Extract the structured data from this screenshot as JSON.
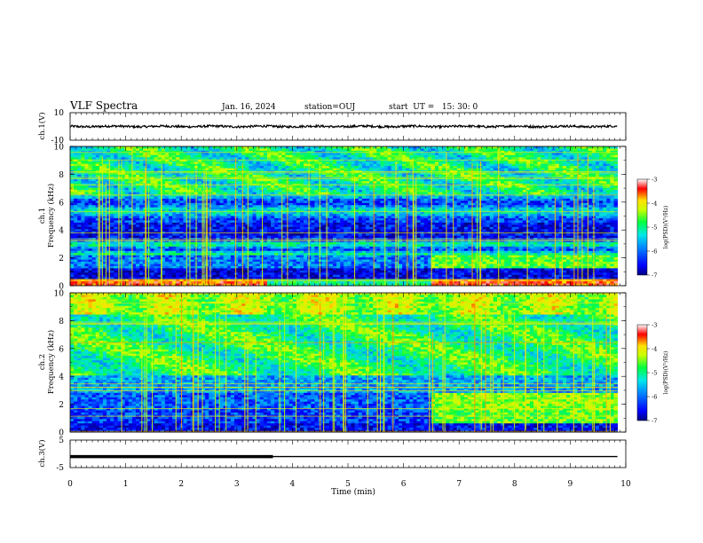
{
  "header": {
    "title": "VLF Spectra",
    "date": "Jan. 16, 2024",
    "station": "station=OUJ",
    "start": "start  UT =   15: 30: 0"
  },
  "chart_data": [
    {
      "type": "line",
      "panel": "ch1-waveform",
      "ylabel": "ch.1(V)",
      "ylim": [
        -10,
        10
      ],
      "yticks": [
        "10",
        "-10"
      ],
      "xlim": [
        0,
        10
      ],
      "x": [
        0,
        9.85
      ],
      "y_level": 0
    },
    {
      "type": "heatmap",
      "panel": "ch1-spectrogram",
      "ylabel": "ch.1\nFrequency (kHz)",
      "ylim": [
        0,
        10
      ],
      "yticks": [
        "0",
        "2",
        "4",
        "6",
        "8",
        "10"
      ],
      "xlim": [
        0,
        10
      ],
      "x_end": 9.85,
      "colorbar": {
        "label": "log(PSD)(V²/Hz)",
        "range": [
          -7,
          -3
        ],
        "ticks": [
          "-3",
          "-4",
          "-5",
          "-6",
          "-7"
        ]
      },
      "colormap": [
        "#000080",
        "#0000ff",
        "#0080ff",
        "#00e0e0",
        "#00ff40",
        "#c0ff00",
        "#ffe000",
        "#ff0000",
        "#ffffff"
      ]
    },
    {
      "type": "heatmap",
      "panel": "ch2-spectrogram",
      "ylabel": "ch.2\nFrequency (kHz)",
      "ylim": [
        0,
        10
      ],
      "yticks": [
        "0",
        "2",
        "4",
        "6",
        "8",
        "10"
      ],
      "xlim": [
        0,
        10
      ],
      "x_end": 9.85,
      "colorbar": {
        "label": "log(PSD)(V²/Hz)",
        "range": [
          -7,
          -3
        ],
        "ticks": [
          "-3",
          "-4",
          "-5",
          "-6",
          "-7"
        ]
      },
      "colormap": [
        "#000080",
        "#0000ff",
        "#0080ff",
        "#00e0e0",
        "#00ff40",
        "#c0ff00",
        "#ffe000",
        "#ff0000",
        "#ffffff"
      ]
    },
    {
      "type": "line",
      "panel": "ch3-signal",
      "ylabel": "ch.3(V)",
      "ylim": [
        -5,
        5
      ],
      "yticks": [
        "5",
        "0",
        "-5"
      ],
      "xlim": [
        0,
        10
      ],
      "x": [
        0,
        3.65,
        3.65,
        9.85
      ],
      "y": [
        -1,
        -1,
        -1,
        -1
      ],
      "thick_until": 3.65
    }
  ],
  "xaxis": {
    "label": "Time (min)",
    "ticks": [
      "0",
      "1",
      "2",
      "3",
      "4",
      "5",
      "6",
      "7",
      "8",
      "9",
      "10"
    ]
  }
}
